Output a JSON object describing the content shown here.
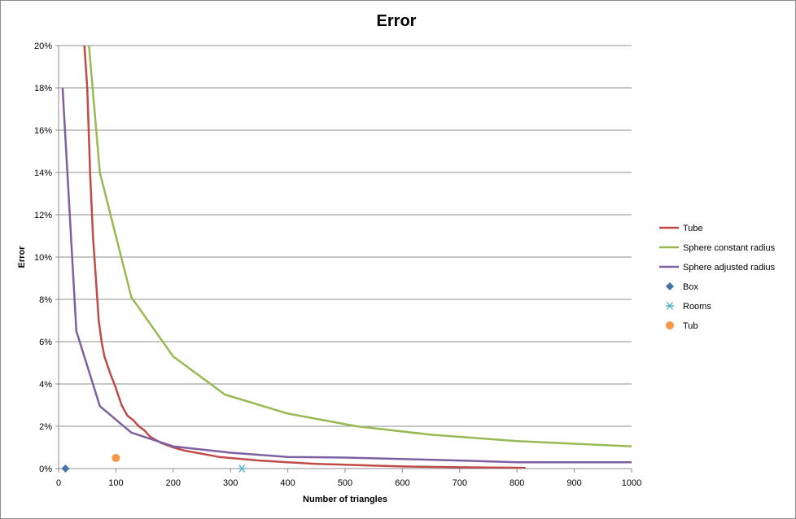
{
  "chart_data": {
    "type": "line",
    "title": "Error",
    "xlabel": "Number of triangles",
    "ylabel": "Error",
    "xlim": [
      0,
      1000
    ],
    "ylim": [
      0,
      20
    ],
    "x_ticks": [
      0,
      100,
      200,
      300,
      400,
      500,
      600,
      700,
      800,
      900,
      1000
    ],
    "y_ticks": [
      0,
      2,
      4,
      6,
      8,
      10,
      12,
      14,
      16,
      18,
      20
    ],
    "y_tick_labels": [
      "0%",
      "2%",
      "4%",
      "6%",
      "8%",
      "10%",
      "12%",
      "14%",
      "16%",
      "18%",
      "20%"
    ],
    "grid": "horizontal",
    "legend_position": "right",
    "series": [
      {
        "name": "Tube",
        "kind": "line",
        "color": "#BE4B48",
        "points": [
          [
            45,
            20
          ],
          [
            50,
            18
          ],
          [
            55,
            14
          ],
          [
            60,
            11
          ],
          [
            65,
            9
          ],
          [
            70,
            7
          ],
          [
            75,
            6
          ],
          [
            80,
            5.3
          ],
          [
            90,
            4.5
          ],
          [
            100,
            3.8
          ],
          [
            110,
            3
          ],
          [
            120,
            2.5
          ],
          [
            130,
            2.3
          ],
          [
            140,
            2
          ],
          [
            150,
            1.8
          ],
          [
            160,
            1.5
          ],
          [
            180,
            1.2
          ],
          [
            200,
            1.0
          ],
          [
            220,
            0.85
          ],
          [
            250,
            0.7
          ],
          [
            280,
            0.55
          ],
          [
            300,
            0.5
          ],
          [
            350,
            0.38
          ],
          [
            400,
            0.3
          ],
          [
            450,
            0.22
          ],
          [
            500,
            0.18
          ],
          [
            550,
            0.14
          ],
          [
            600,
            0.1
          ],
          [
            650,
            0.08
          ],
          [
            700,
            0.06
          ],
          [
            750,
            0.05
          ],
          [
            800,
            0.04
          ],
          [
            815,
            0.03
          ]
        ]
      },
      {
        "name": "Sphere constant radius",
        "kind": "line",
        "color": "#98B954",
        "points": [
          [
            53,
            20
          ],
          [
            72,
            14
          ],
          [
            127,
            8.1
          ],
          [
            200,
            5.3
          ],
          [
            290,
            3.5
          ],
          [
            400,
            2.6
          ],
          [
            520,
            2.0
          ],
          [
            650,
            1.6
          ],
          [
            800,
            1.3
          ],
          [
            1000,
            1.05
          ]
        ]
      },
      {
        "name": "Sphere adjusted radius",
        "kind": "line",
        "color": "#7D60A0",
        "points": [
          [
            7,
            18
          ],
          [
            31,
            6.5
          ],
          [
            72,
            2.95
          ],
          [
            127,
            1.7
          ],
          [
            200,
            1.05
          ],
          [
            300,
            0.75
          ],
          [
            400,
            0.55
          ],
          [
            500,
            0.52
          ],
          [
            600,
            0.45
          ],
          [
            700,
            0.38
          ],
          [
            800,
            0.3
          ],
          [
            900,
            0.3
          ],
          [
            1000,
            0.3
          ]
        ]
      },
      {
        "name": "Box",
        "kind": "marker",
        "marker": "diamond",
        "color": "#4572A7",
        "points": [
          [
            12,
            0
          ]
        ]
      },
      {
        "name": "Rooms",
        "kind": "marker",
        "marker": "star",
        "color": "#4BACC6",
        "points": [
          [
            320,
            0
          ]
        ]
      },
      {
        "name": "Tub",
        "kind": "marker",
        "marker": "circle",
        "color": "#F79646",
        "points": [
          [
            100,
            0.5
          ]
        ]
      }
    ]
  }
}
